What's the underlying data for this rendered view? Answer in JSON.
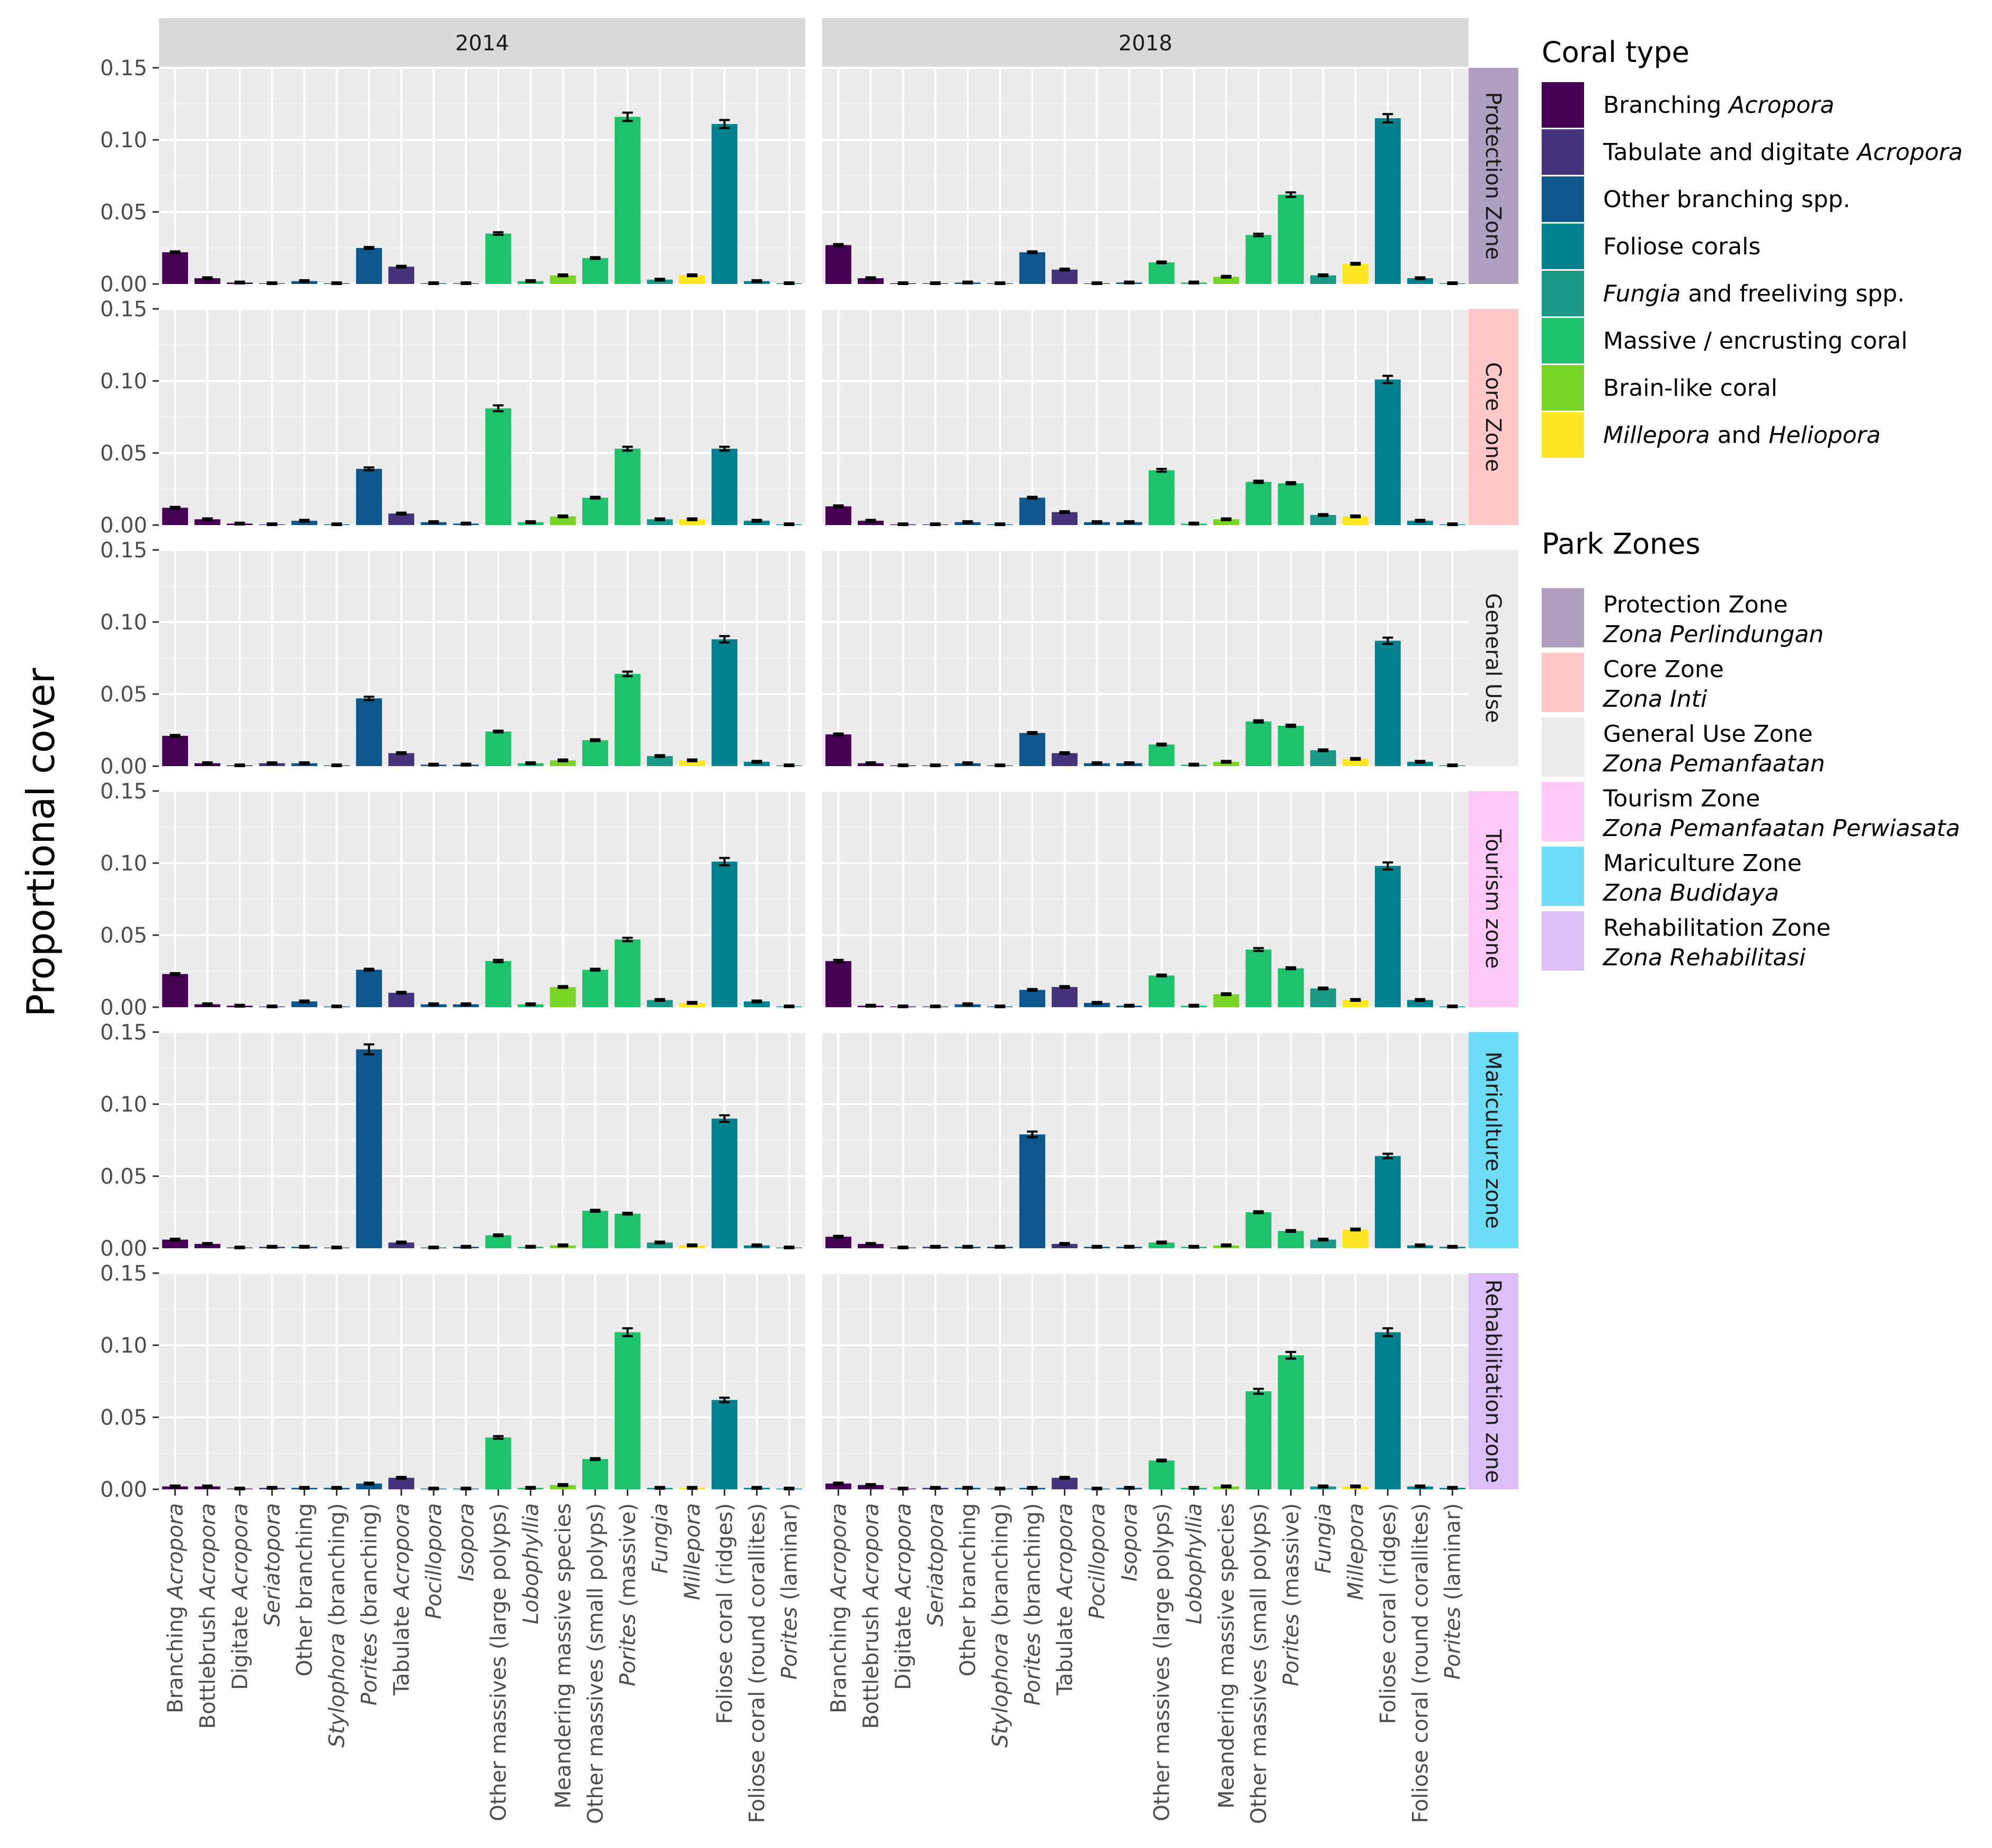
{
  "chart_data": {
    "type": "bar",
    "ylabel": "Proportional cover",
    "ylim": [
      0,
      0.15
    ],
    "yticks": [
      "0.00",
      "0.05",
      "0.10",
      "0.15"
    ],
    "ytick_values": [
      0,
      0.05,
      0.1,
      0.15
    ],
    "years": [
      "2014",
      "2018"
    ],
    "categories": [
      {
        "pre": "Branching ",
        "it": "Acropora",
        "post": ""
      },
      {
        "pre": "Bottlebrush ",
        "it": "Acropora",
        "post": ""
      },
      {
        "pre": "Digitate ",
        "it": "Acropora",
        "post": ""
      },
      {
        "pre": "",
        "it": "Seriatopora",
        "post": ""
      },
      {
        "pre": "Other branching",
        "it": "",
        "post": ""
      },
      {
        "pre": "",
        "it": "Stylophora",
        "post": " (branching)"
      },
      {
        "pre": "",
        "it": "Porites",
        "post": " (branching)"
      },
      {
        "pre": "Tabulate ",
        "it": "Acropora",
        "post": ""
      },
      {
        "pre": "",
        "it": "Pocillopora",
        "post": ""
      },
      {
        "pre": "",
        "it": "Isopora",
        "post": ""
      },
      {
        "pre": "Other massives (large polyps)",
        "it": "",
        "post": ""
      },
      {
        "pre": "",
        "it": "Lobophyllia",
        "post": ""
      },
      {
        "pre": "Meandering massive species",
        "it": "",
        "post": ""
      },
      {
        "pre": "Other massives (small polyps)",
        "it": "",
        "post": ""
      },
      {
        "pre": "",
        "it": "Porites",
        "post": " (massive)"
      },
      {
        "pre": "",
        "it": "Fungia",
        "post": ""
      },
      {
        "pre": "",
        "it": "Millepora",
        "post": ""
      },
      {
        "pre": "Foliose coral (ridges)",
        "it": "",
        "post": ""
      },
      {
        "pre": "Foliose coral (round corallites)",
        "it": "",
        "post": ""
      },
      {
        "pre": "",
        "it": "Porites",
        "post": " (laminar)"
      }
    ],
    "category_type": [
      0,
      0,
      0,
      1,
      2,
      2,
      2,
      1,
      2,
      2,
      5,
      5,
      6,
      5,
      5,
      4,
      7,
      3,
      3,
      3
    ],
    "coral_types": [
      {
        "pre": "Branching ",
        "it": "Acropora",
        "post": "",
        "color": "#440154"
      },
      {
        "pre": "Tabulate and digitate ",
        "it": "Acropora",
        "post": "",
        "color": "#46337e"
      },
      {
        "pre": "Other branching spp.",
        "it": "",
        "post": "",
        "color": "#0e568b"
      },
      {
        "pre": "Foliose corals",
        "it": "",
        "post": "",
        "color": "#00838f"
      },
      {
        "pre": "",
        "it": "Fungia",
        "post": " and freeliving spp.",
        "color": "#1a9a86"
      },
      {
        "pre": "Massive / encrusting coral",
        "it": "",
        "post": "",
        "color": "#1fc26c"
      },
      {
        "pre": "Brain-like coral",
        "it": "",
        "post": "",
        "color": "#7ad427"
      },
      {
        "pre": "",
        "it": "Millepora",
        "post": " and ",
        "it2": "Heliopora",
        "color": "#fde725"
      }
    ],
    "zones": [
      {
        "label": "Protection Zone",
        "color": "#b0a0c0",
        "values": {
          "2014": [
            0.022,
            0.004,
            0.001,
            0.0005,
            0.002,
            0.0005,
            0.025,
            0.012,
            0.0005,
            0.0005,
            0.035,
            0.002,
            0.006,
            0.018,
            0.116,
            0.003,
            0.006,
            0.111,
            0.002,
            0.0005
          ],
          "2018": [
            0.027,
            0.004,
            0.0005,
            0.0005,
            0.001,
            0.0005,
            0.022,
            0.01,
            0.0005,
            0.001,
            0.015,
            0.001,
            0.005,
            0.034,
            0.062,
            0.006,
            0.014,
            0.115,
            0.004,
            0.0005
          ]
        }
      },
      {
        "label": "Core Zone",
        "color": "#ffc9c9",
        "values": {
          "2014": [
            0.012,
            0.004,
            0.001,
            0.0005,
            0.003,
            0.0005,
            0.039,
            0.008,
            0.002,
            0.001,
            0.081,
            0.002,
            0.006,
            0.019,
            0.053,
            0.004,
            0.004,
            0.053,
            0.003,
            0.0005
          ],
          "2018": [
            0.013,
            0.003,
            0.0005,
            0.0005,
            0.002,
            0.0005,
            0.019,
            0.009,
            0.002,
            0.002,
            0.038,
            0.001,
            0.004,
            0.03,
            0.029,
            0.007,
            0.006,
            0.101,
            0.003,
            0.0005
          ]
        }
      },
      {
        "label": "General Use",
        "color": "#ebebeb",
        "values": {
          "2014": [
            0.021,
            0.002,
            0.0005,
            0.002,
            0.002,
            0.0005,
            0.047,
            0.009,
            0.001,
            0.001,
            0.024,
            0.002,
            0.004,
            0.018,
            0.064,
            0.007,
            0.004,
            0.088,
            0.003,
            0.0005
          ],
          "2018": [
            0.022,
            0.002,
            0.0005,
            0.0005,
            0.002,
            0.0005,
            0.023,
            0.009,
            0.002,
            0.002,
            0.015,
            0.001,
            0.003,
            0.031,
            0.028,
            0.011,
            0.005,
            0.087,
            0.003,
            0.0005
          ]
        }
      },
      {
        "label": "Tourism zone",
        "color": "#ffc9f6",
        "values": {
          "2014": [
            0.023,
            0.002,
            0.001,
            0.0005,
            0.004,
            0.0005,
            0.026,
            0.01,
            0.002,
            0.002,
            0.032,
            0.002,
            0.014,
            0.026,
            0.047,
            0.005,
            0.003,
            0.101,
            0.004,
            0.0005
          ],
          "2018": [
            0.032,
            0.001,
            0.0005,
            0.0005,
            0.002,
            0.0005,
            0.012,
            0.014,
            0.003,
            0.001,
            0.022,
            0.001,
            0.009,
            0.04,
            0.027,
            0.013,
            0.005,
            0.098,
            0.005,
            0.0005
          ]
        }
      },
      {
        "label": "Mariculture zone",
        "color": "#6edcf5",
        "values": {
          "2014": [
            0.006,
            0.003,
            0.0005,
            0.001,
            0.001,
            0.0005,
            0.138,
            0.004,
            0.0005,
            0.001,
            0.009,
            0.001,
            0.002,
            0.026,
            0.024,
            0.004,
            0.002,
            0.09,
            0.002,
            0.0005
          ],
          "2018": [
            0.008,
            0.003,
            0.0005,
            0.001,
            0.001,
            0.001,
            0.079,
            0.003,
            0.001,
            0.001,
            0.004,
            0.001,
            0.002,
            0.025,
            0.012,
            0.006,
            0.013,
            0.064,
            0.002,
            0.001
          ]
        }
      },
      {
        "label": "Rehabilitation zone",
        "color": "#dcbff8",
        "values": {
          "2014": [
            0.002,
            0.002,
            0.0005,
            0.001,
            0.001,
            0.001,
            0.004,
            0.008,
            0.0005,
            0.0005,
            0.036,
            0.001,
            0.003,
            0.021,
            0.109,
            0.001,
            0.001,
            0.062,
            0.001,
            0.0005
          ],
          "2018": [
            0.004,
            0.003,
            0.0005,
            0.001,
            0.001,
            0.0005,
            0.001,
            0.008,
            0.0005,
            0.001,
            0.02,
            0.001,
            0.002,
            0.068,
            0.093,
            0.002,
            0.002,
            0.109,
            0.002,
            0.001
          ]
        }
      }
    ],
    "legend_coral_title": "Coral type",
    "legend_zone_title": "Park Zones",
    "park_zones": [
      {
        "name": "Protection Zone",
        "local": "Zona Perlindungan",
        "color": "#b0a0c0"
      },
      {
        "name": "Core Zone",
        "local": "Zona Inti",
        "color": "#ffc9c9"
      },
      {
        "name": "General Use Zone",
        "local": "Zona Pemanfaatan",
        "color": "#ebebeb"
      },
      {
        "name": "Tourism Zone",
        "local": "Zona Pemanfaatan Perwiasata",
        "color": "#ffc9f6"
      },
      {
        "name": "Mariculture Zone",
        "local": "Zona Budidaya",
        "color": "#6edcf5"
      },
      {
        "name": "Rehabilitation Zone",
        "local": "Zona Rehabilitasi",
        "color": "#dcbff8"
      }
    ]
  }
}
